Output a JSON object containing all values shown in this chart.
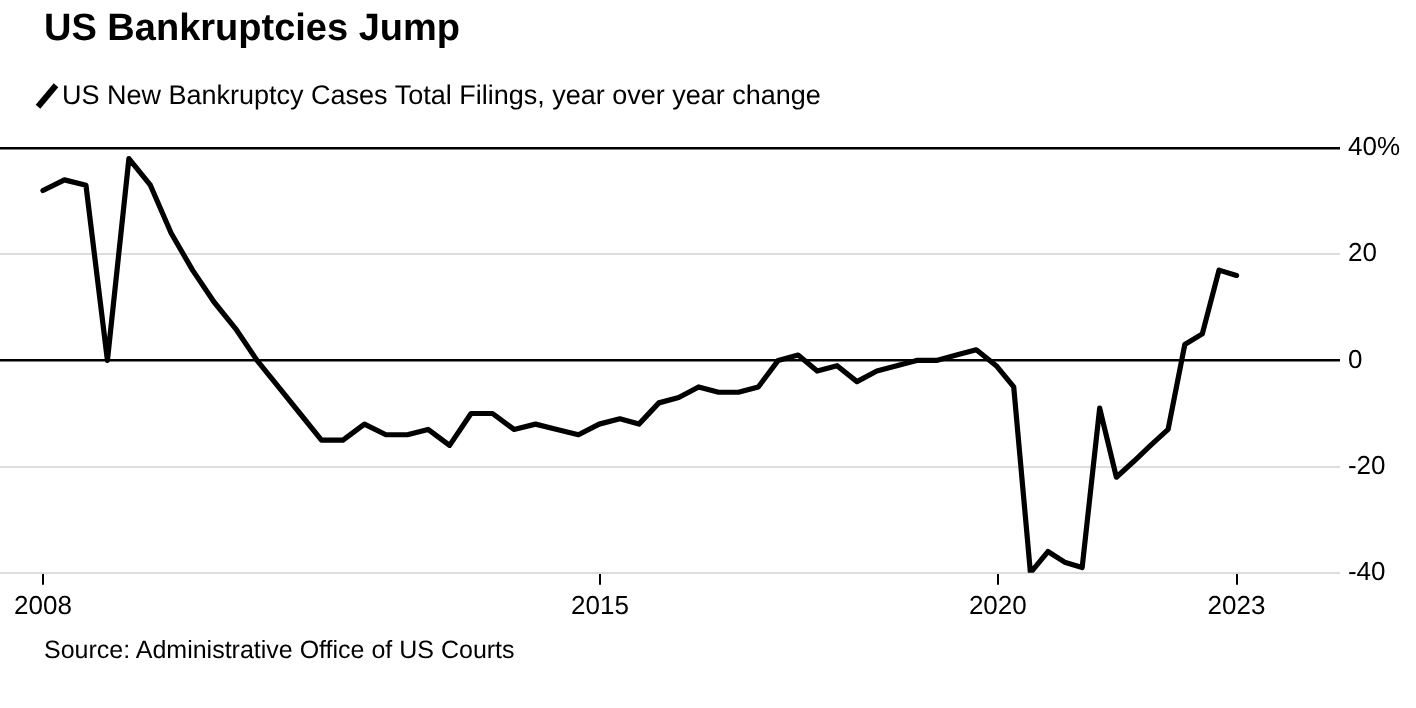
{
  "chart_data": {
    "type": "line",
    "title": "US Bankruptcies Jump",
    "annotations": [
      "Source: Administrative Office of US Courts"
    ],
    "x": [
      2008,
      2008.27,
      2008.54,
      2008.81,
      2009.08,
      2009.35,
      2009.61,
      2009.88,
      2010.15,
      2010.42,
      2010.69,
      2010.96,
      2011.23,
      2011.5,
      2011.77,
      2012.04,
      2012.31,
      2012.58,
      2012.84,
      2013.11,
      2013.38,
      2013.65,
      2013.92,
      2014.19,
      2014.46,
      2014.73,
      2014.99,
      2015.25,
      2015.49,
      2015.74,
      2015.99,
      2016.24,
      2016.49,
      2016.74,
      2016.99,
      2017.24,
      2017.49,
      2017.73,
      2017.98,
      2018.23,
      2018.48,
      2018.73,
      2018.98,
      2019.23,
      2019.48,
      2019.73,
      2019.98,
      2020.2,
      2020.41,
      2020.63,
      2020.84,
      2021.06,
      2021.28,
      2021.49,
      2021.71,
      2021.92,
      2022.14,
      2022.35,
      2022.57,
      2022.78,
      2023
    ],
    "series": [
      {
        "name": "US New Bankruptcy Cases Total Filings, year over year change",
        "color": "#000000",
        "values": [
          32,
          34,
          33,
          0,
          38,
          33,
          24,
          17,
          11,
          6,
          0,
          -5,
          -10,
          -15,
          -15,
          -12,
          -14,
          -14,
          -13,
          -16,
          -10,
          -10,
          -13,
          -12,
          -13,
          -14,
          -12,
          -11,
          -12,
          -8,
          -7,
          -5,
          -6,
          -6,
          -5,
          0,
          1,
          -2,
          -1,
          -4,
          -2,
          -1,
          0,
          0,
          1,
          2,
          -1,
          -5,
          -40,
          -36,
          -38,
          -39,
          -9,
          -22,
          -19,
          -16,
          -13,
          3,
          5,
          17,
          16
        ]
      }
    ],
    "xlim": [
      2007.46,
      2024.3
    ],
    "xticks": [
      2008,
      2015,
      2020,
      2023
    ],
    "ylim": [
      -40,
      40
    ],
    "yticks": [
      {
        "value": 40,
        "label": "40%"
      },
      20,
      0,
      -20,
      -40
    ],
    "grid": "y",
    "legend": "top left",
    "marker": "none",
    "line_style": "solid"
  }
}
